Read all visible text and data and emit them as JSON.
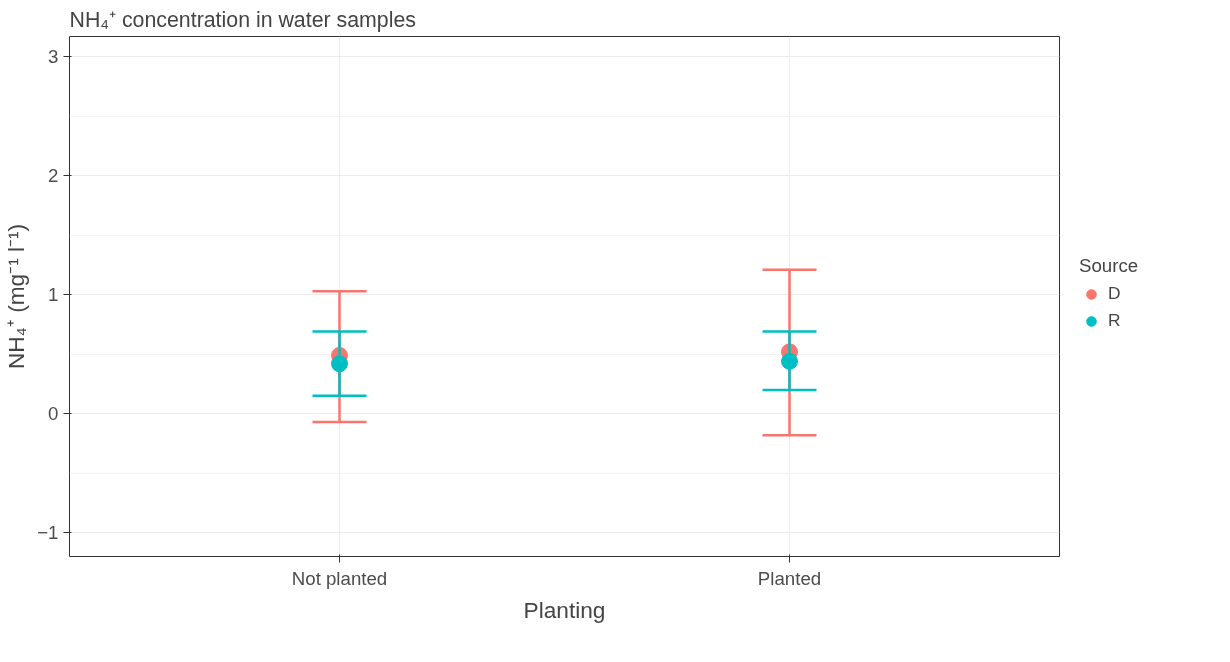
{
  "chart_data": {
    "type": "scatter",
    "title": "NH₄⁺ concentration in water samples",
    "xlabel": "Planting",
    "ylabel": "NH₄⁺ (mg⁻¹ l⁻¹)",
    "legend_title": "Source",
    "categories": [
      "Not planted",
      "Planted"
    ],
    "series": [
      {
        "name": "D",
        "color": "#f8766d",
        "values": [
          0.49,
          0.52
        ],
        "errors": [
          [
            -0.07,
            1.03
          ],
          [
            -0.18,
            1.21
          ]
        ]
      },
      {
        "name": "R",
        "color": "#00bfc4",
        "values": [
          0.42,
          0.44
        ],
        "errors": [
          [
            0.15,
            0.69
          ],
          [
            0.2,
            0.69
          ]
        ]
      }
    ],
    "ylim": [
      -1.2,
      3.17
    ],
    "yticks": [
      -1,
      0,
      1,
      2,
      3
    ],
    "grid": true,
    "legend": "right",
    "marker": "circle"
  }
}
